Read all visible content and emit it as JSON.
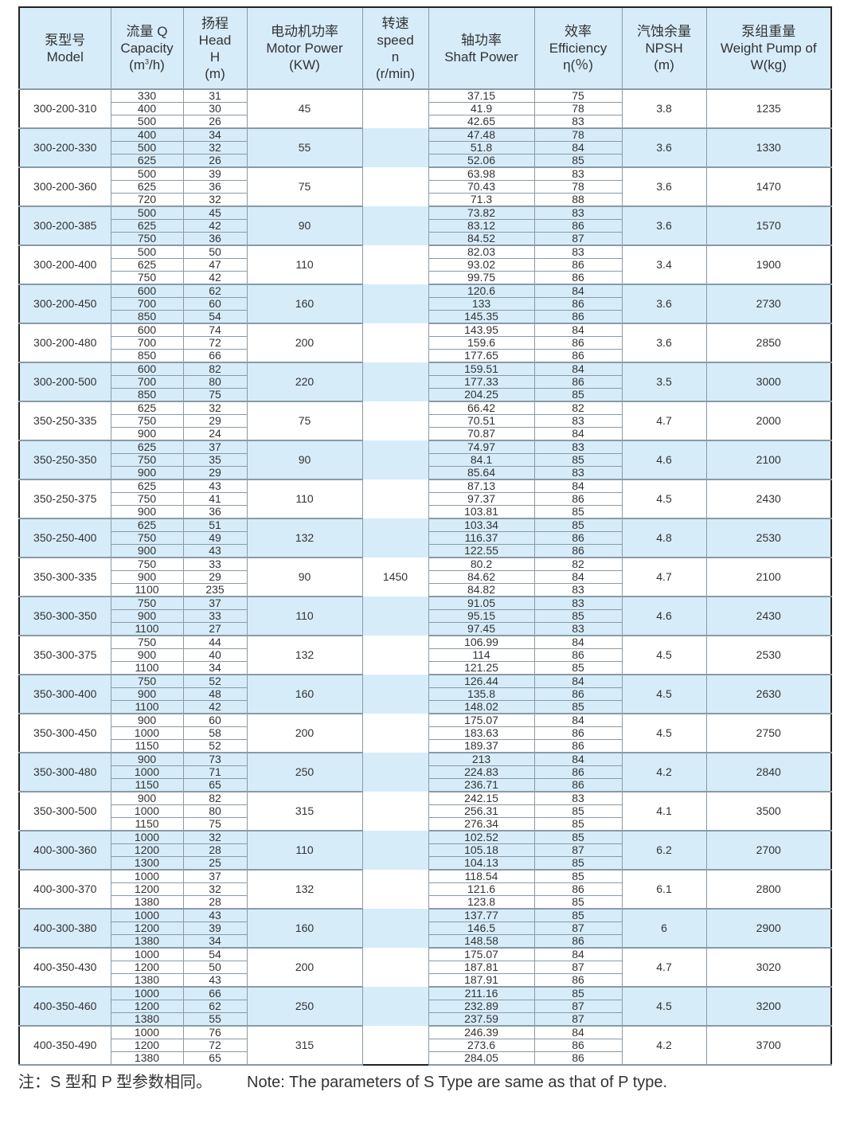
{
  "header": {
    "model": [
      "泵型号",
      "Model"
    ],
    "capacity": [
      "流量 Q",
      "Capacity",
      "(m",
      "3",
      "/h)"
    ],
    "head": [
      "扬程",
      "Head",
      "H",
      "(m)"
    ],
    "motor": [
      "电动机功率",
      "Motor Power",
      "(KW)"
    ],
    "speed": [
      "转速",
      "speed",
      "n",
      "(r/min)"
    ],
    "shaft": [
      "轴功率",
      "Shaft Power"
    ],
    "eff": [
      "效率",
      "Efficiency",
      "η(％)"
    ],
    "npsh": [
      "汽蚀余量",
      "NPSH",
      "(m)"
    ],
    "weight": [
      "泵组重量",
      "Weight Pump of",
      "W(kg)"
    ]
  },
  "speed_value": "1450",
  "colors": {
    "header_bg": "#d6ecf9",
    "row_alt_bg": "#d6ecf9",
    "border": "#8a9aa6"
  },
  "groups": [
    {
      "model": "300-200-310",
      "q": [
        "330",
        "400",
        "500"
      ],
      "h": [
        "31",
        "30",
        "26"
      ],
      "motor": "45",
      "shaft": [
        "37.15",
        "41.9",
        "42.65"
      ],
      "eff": [
        "75",
        "78",
        "83"
      ],
      "npsh": "3.8",
      "weight": "1235"
    },
    {
      "model": "300-200-330",
      "q": [
        "400",
        "500",
        "625"
      ],
      "h": [
        "34",
        "32",
        "26"
      ],
      "motor": "55",
      "shaft": [
        "47.48",
        "51.8",
        "52.06"
      ],
      "eff": [
        "78",
        "84",
        "85"
      ],
      "npsh": "3.6",
      "weight": "1330"
    },
    {
      "model": "300-200-360",
      "q": [
        "500",
        "625",
        "720"
      ],
      "h": [
        "39",
        "36",
        "32"
      ],
      "motor": "75",
      "shaft": [
        "63.98",
        "70.43",
        "71.3"
      ],
      "eff": [
        "83",
        "78",
        "88"
      ],
      "npsh": "3.6",
      "weight": "1470"
    },
    {
      "model": "300-200-385",
      "q": [
        "500",
        "625",
        "750"
      ],
      "h": [
        "45",
        "42",
        "36"
      ],
      "motor": "90",
      "shaft": [
        "73.82",
        "83.12",
        "84.52"
      ],
      "eff": [
        "83",
        "86",
        "87"
      ],
      "npsh": "3.6",
      "weight": "1570"
    },
    {
      "model": "300-200-400",
      "q": [
        "500",
        "625",
        "750"
      ],
      "h": [
        "50",
        "47",
        "42"
      ],
      "motor": "110",
      "shaft": [
        "82.03",
        "93.02",
        "99.75"
      ],
      "eff": [
        "83",
        "86",
        "86"
      ],
      "npsh": "3.4",
      "weight": "1900"
    },
    {
      "model": "300-200-450",
      "q": [
        "600",
        "700",
        "850"
      ],
      "h": [
        "62",
        "60",
        "54"
      ],
      "motor": "160",
      "shaft": [
        "120.6",
        "133",
        "145.35"
      ],
      "eff": [
        "84",
        "86",
        "86"
      ],
      "npsh": "3.6",
      "weight": "2730"
    },
    {
      "model": "300-200-480",
      "q": [
        "600",
        "700",
        "850"
      ],
      "h": [
        "74",
        "72",
        "66"
      ],
      "motor": "200",
      "shaft": [
        "143.95",
        "159.6",
        "177.65"
      ],
      "eff": [
        "84",
        "86",
        "86"
      ],
      "npsh": "3.6",
      "weight": "2850"
    },
    {
      "model": "300-200-500",
      "q": [
        "600",
        "700",
        "850"
      ],
      "h": [
        "82",
        "80",
        "75"
      ],
      "motor": "220",
      "shaft": [
        "159.51",
        "177.33",
        "204.25"
      ],
      "eff": [
        "84",
        "86",
        "85"
      ],
      "npsh": "3.5",
      "weight": "3000"
    },
    {
      "model": "350-250-335",
      "q": [
        "625",
        "750",
        "900"
      ],
      "h": [
        "32",
        "29",
        "24"
      ],
      "motor": "75",
      "shaft": [
        "66.42",
        "70.51",
        "70.87"
      ],
      "eff": [
        "82",
        "83",
        "84"
      ],
      "npsh": "4.7",
      "weight": "2000"
    },
    {
      "model": "350-250-350",
      "q": [
        "625",
        "750",
        "900"
      ],
      "h": [
        "37",
        "35",
        "29"
      ],
      "motor": "90",
      "shaft": [
        "74.97",
        "84.1",
        "85.64"
      ],
      "eff": [
        "83",
        "85",
        "83"
      ],
      "npsh": "4.6",
      "weight": "2100"
    },
    {
      "model": "350-250-375",
      "q": [
        "625",
        "750",
        "900"
      ],
      "h": [
        "43",
        "41",
        "36"
      ],
      "motor": "110",
      "shaft": [
        "87.13",
        "97.37",
        "103.81"
      ],
      "eff": [
        "84",
        "86",
        "85"
      ],
      "npsh": "4.5",
      "weight": "2430"
    },
    {
      "model": "350-250-400",
      "q": [
        "625",
        "750",
        "900"
      ],
      "h": [
        "51",
        "49",
        "43"
      ],
      "motor": "132",
      "shaft": [
        "103.34",
        "116.37",
        "122.55"
      ],
      "eff": [
        "85",
        "86",
        "86"
      ],
      "npsh": "4.8",
      "weight": "2530"
    },
    {
      "model": "350-300-335",
      "q": [
        "750",
        "900",
        "1100"
      ],
      "h": [
        "33",
        "29",
        "235"
      ],
      "motor": "90",
      "shaft": [
        "80.2",
        "84.62",
        "84.82"
      ],
      "eff": [
        "82",
        "84",
        "83"
      ],
      "npsh": "4.7",
      "weight": "2100"
    },
    {
      "model": "350-300-350",
      "q": [
        "750",
        "900",
        "1100"
      ],
      "h": [
        "37",
        "33",
        "27"
      ],
      "motor": "110",
      "shaft": [
        "91.05",
        "95.15",
        "97.45"
      ],
      "eff": [
        "83",
        "85",
        "83"
      ],
      "npsh": "4.6",
      "weight": "2430"
    },
    {
      "model": "350-300-375",
      "q": [
        "750",
        "900",
        "1100"
      ],
      "h": [
        "44",
        "40",
        "34"
      ],
      "motor": "132",
      "shaft": [
        "106.99",
        "114",
        "121.25"
      ],
      "eff": [
        "84",
        "86",
        "85"
      ],
      "npsh": "4.5",
      "weight": "2530"
    },
    {
      "model": "350-300-400",
      "q": [
        "750",
        "900",
        "1100"
      ],
      "h": [
        "52",
        "48",
        "42"
      ],
      "motor": "160",
      "shaft": [
        "126.44",
        "135.8",
        "148.02"
      ],
      "eff": [
        "84",
        "86",
        "85"
      ],
      "npsh": "4.5",
      "weight": "2630"
    },
    {
      "model": "350-300-450",
      "q": [
        "900",
        "1000",
        "1150"
      ],
      "h": [
        "60",
        "58",
        "52"
      ],
      "motor": "200",
      "shaft": [
        "175.07",
        "183.63",
        "189.37"
      ],
      "eff": [
        "84",
        "86",
        "86"
      ],
      "npsh": "4.5",
      "weight": "2750"
    },
    {
      "model": "350-300-480",
      "q": [
        "900",
        "1000",
        "1150"
      ],
      "h": [
        "73",
        "71",
        "65"
      ],
      "motor": "250",
      "shaft": [
        "213",
        "224.83",
        "236.71"
      ],
      "eff": [
        "84",
        "86",
        "86"
      ],
      "npsh": "4.2",
      "weight": "2840"
    },
    {
      "model": "350-300-500",
      "q": [
        "900",
        "1000",
        "1150"
      ],
      "h": [
        "82",
        "80",
        "75"
      ],
      "motor": "315",
      "shaft": [
        "242.15",
        "256.31",
        "276.34"
      ],
      "eff": [
        "83",
        "85",
        "85"
      ],
      "npsh": "4.1",
      "weight": "3500"
    },
    {
      "model": "400-300-360",
      "q": [
        "1000",
        "1200",
        "1300"
      ],
      "h": [
        "32",
        "28",
        "25"
      ],
      "motor": "110",
      "shaft": [
        "102.52",
        "105.18",
        "104.13"
      ],
      "eff": [
        "85",
        "87",
        "85"
      ],
      "npsh": "6.2",
      "weight": "2700"
    },
    {
      "model": "400-300-370",
      "q": [
        "1000",
        "1200",
        "1380"
      ],
      "h": [
        "37",
        "32",
        "28"
      ],
      "motor": "132",
      "shaft": [
        "118.54",
        "121.6",
        "123.8"
      ],
      "eff": [
        "85",
        "86",
        "85"
      ],
      "npsh": "6.1",
      "weight": "2800"
    },
    {
      "model": "400-300-380",
      "q": [
        "1000",
        "1200",
        "1380"
      ],
      "h": [
        "43",
        "39",
        "34"
      ],
      "motor": "160",
      "shaft": [
        "137.77",
        "146.5",
        "148.58"
      ],
      "eff": [
        "85",
        "87",
        "86"
      ],
      "npsh": "6",
      "weight": "2900"
    },
    {
      "model": "400-350-430",
      "q": [
        "1000",
        "1200",
        "1380"
      ],
      "h": [
        "54",
        "50",
        "43"
      ],
      "motor": "200",
      "shaft": [
        "175.07",
        "187.81",
        "187.91"
      ],
      "eff": [
        "84",
        "87",
        "86"
      ],
      "npsh": "4.7",
      "weight": "3020"
    },
    {
      "model": "400-350-460",
      "q": [
        "1000",
        "1200",
        "1380"
      ],
      "h": [
        "66",
        "62",
        "55"
      ],
      "motor": "250",
      "shaft": [
        "211.16",
        "232.89",
        "237.59"
      ],
      "eff": [
        "85",
        "87",
        "87"
      ],
      "npsh": "4.5",
      "weight": "3200"
    },
    {
      "model": "400-350-490",
      "q": [
        "1000",
        "1200",
        "1380"
      ],
      "h": [
        "76",
        "72",
        "65"
      ],
      "motor": "315",
      "shaft": [
        "246.39",
        "273.6",
        "284.05"
      ],
      "eff": [
        "84",
        "86",
        "86"
      ],
      "npsh": "4.2",
      "weight": "3700"
    }
  ],
  "note": {
    "zh": "注：S 型和 P 型参数相同。",
    "en": "Note: The parameters of S Type are same as that of P type."
  }
}
